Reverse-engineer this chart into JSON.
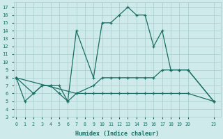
{
  "xlabel": "Humidex (Indice chaleur)",
  "background_color": "#ceeaea",
  "grid_color": "#aacccc",
  "line_color": "#1a6e64",
  "x_ticks": [
    0,
    1,
    2,
    3,
    4,
    5,
    6,
    7,
    8,
    9,
    10,
    11,
    12,
    13,
    14,
    15,
    16,
    17,
    18,
    19,
    20,
    23
  ],
  "ylim": [
    3.0,
    17.6
  ],
  "yticks": [
    3,
    4,
    5,
    6,
    7,
    8,
    9,
    10,
    11,
    12,
    13,
    14,
    15,
    16,
    17
  ],
  "line1_x": [
    0,
    1,
    2,
    3,
    4,
    5,
    6,
    7,
    8,
    9,
    10,
    11,
    12,
    13,
    14,
    15,
    16,
    17,
    18,
    19,
    20,
    23
  ],
  "line1_y": [
    8,
    5,
    6,
    7,
    7,
    7,
    5,
    6,
    6,
    6,
    6,
    6,
    6,
    6,
    6,
    6,
    6,
    6,
    6,
    6,
    6,
    5
  ],
  "line2_x": [
    0,
    2,
    3,
    4,
    5,
    6,
    7,
    9,
    10,
    11,
    12,
    13,
    14,
    15,
    16,
    17,
    18,
    19,
    20,
    23
  ],
  "line2_y": [
    8,
    6,
    7,
    7,
    6,
    5,
    14,
    8,
    15,
    15,
    16,
    17,
    16,
    16,
    12,
    14,
    9,
    9,
    9,
    5
  ],
  "line3_x": [
    0,
    7,
    9,
    10,
    11,
    12,
    13,
    14,
    15,
    16,
    17,
    18,
    19,
    20,
    23
  ],
  "line3_y": [
    8,
    6,
    7,
    8,
    8,
    8,
    8,
    8,
    8,
    8,
    9,
    9,
    9,
    9,
    5
  ]
}
